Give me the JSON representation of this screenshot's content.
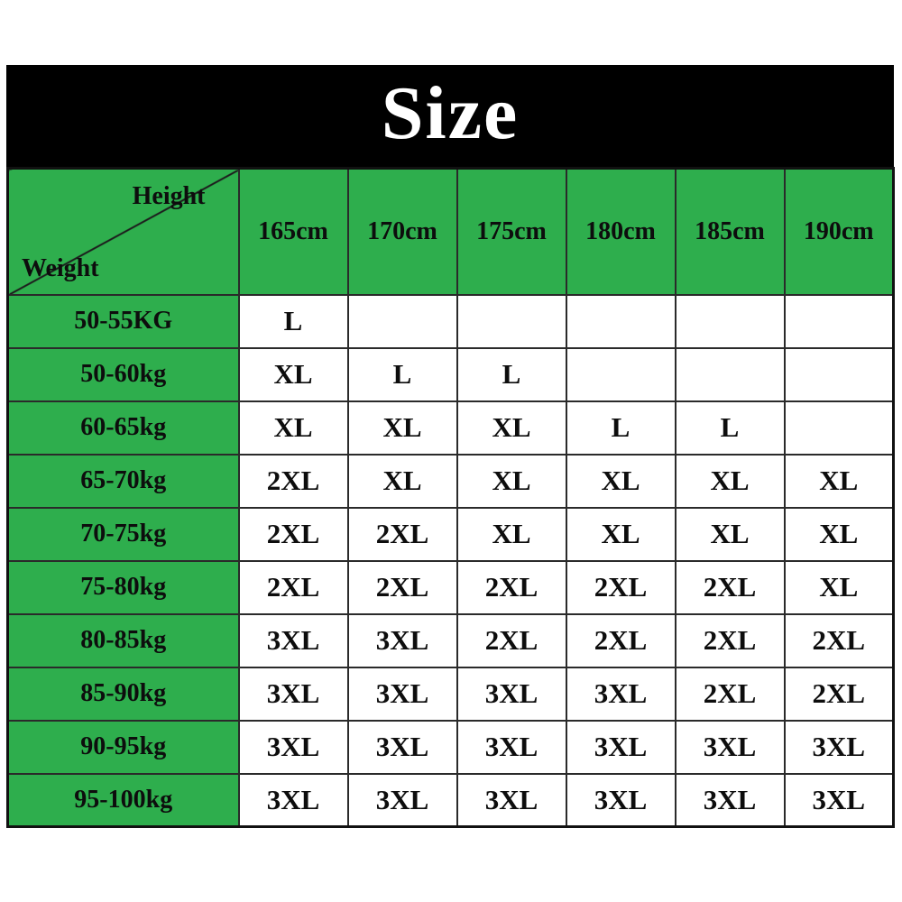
{
  "title": "Size",
  "colors": {
    "banner_background": "#000000",
    "banner_text": "#ffffff",
    "header_green": "#2eae4d",
    "cell_background": "#ffffff",
    "border": "#2a2a2a",
    "text": "#0d0d0d"
  },
  "chart_data": {
    "type": "table",
    "title": "Size",
    "corner": {
      "top_label": "Height",
      "bottom_label": "Weight"
    },
    "columns": [
      "165cm",
      "170cm",
      "175cm",
      "180cm",
      "185cm",
      "190cm"
    ],
    "rows": [
      {
        "weight": "50-55KG",
        "sizes": [
          "L",
          "",
          "",
          "",
          "",
          ""
        ]
      },
      {
        "weight": "50-60kg",
        "sizes": [
          "XL",
          "L",
          "L",
          "",
          "",
          ""
        ]
      },
      {
        "weight": "60-65kg",
        "sizes": [
          "XL",
          "XL",
          "XL",
          "L",
          "L",
          ""
        ]
      },
      {
        "weight": "65-70kg",
        "sizes": [
          "2XL",
          "XL",
          "XL",
          "XL",
          "XL",
          "XL"
        ]
      },
      {
        "weight": "70-75kg",
        "sizes": [
          "2XL",
          "2XL",
          "XL",
          "XL",
          "XL",
          "XL"
        ]
      },
      {
        "weight": "75-80kg",
        "sizes": [
          "2XL",
          "2XL",
          "2XL",
          "2XL",
          "2XL",
          "XL"
        ]
      },
      {
        "weight": "80-85kg",
        "sizes": [
          "3XL",
          "3XL",
          "2XL",
          "2XL",
          "2XL",
          "2XL"
        ]
      },
      {
        "weight": "85-90kg",
        "sizes": [
          "3XL",
          "3XL",
          "3XL",
          "3XL",
          "2XL",
          "2XL"
        ]
      },
      {
        "weight": "90-95kg",
        "sizes": [
          "3XL",
          "3XL",
          "3XL",
          "3XL",
          "3XL",
          "3XL"
        ]
      },
      {
        "weight": "95-100kg",
        "sizes": [
          "3XL",
          "3XL",
          "3XL",
          "3XL",
          "3XL",
          "3XL"
        ]
      }
    ]
  }
}
